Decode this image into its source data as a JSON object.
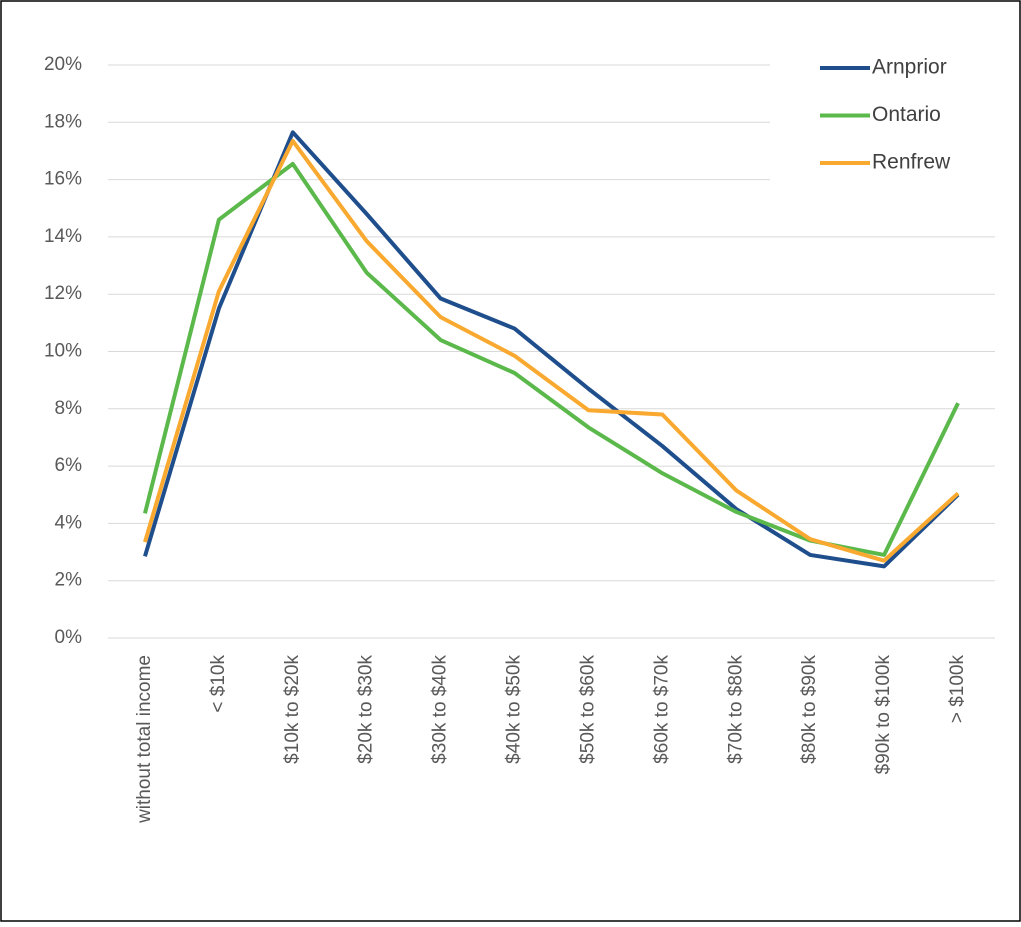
{
  "chart_data": {
    "type": "line",
    "categories": [
      "without total income",
      "< $10k",
      "$10k to $20k",
      "$20k to $30k",
      "$30k to $40k",
      "$40k to $50k",
      "$50k to $60k",
      "$60k to $70k",
      "$70k to $80k",
      "$80k to $90k",
      "$90k to $100k",
      "> $100k"
    ],
    "series": [
      {
        "name": "Arnprior",
        "color": "#1f4e8c",
        "values": [
          2.85,
          11.5,
          17.65,
          14.8,
          11.85,
          10.8,
          8.7,
          6.7,
          4.5,
          2.9,
          2.5,
          5.0
        ]
      },
      {
        "name": "Ontario",
        "color": "#5bb84a",
        "values": [
          4.35,
          14.6,
          16.55,
          12.75,
          10.4,
          9.25,
          7.35,
          5.75,
          4.4,
          3.4,
          2.9,
          8.2
        ]
      },
      {
        "name": "Renfrew",
        "color": "#f9a92f",
        "values": [
          3.35,
          12.1,
          17.35,
          13.85,
          11.2,
          9.85,
          7.95,
          7.8,
          5.15,
          3.45,
          2.7,
          5.05
        ]
      }
    ],
    "ylim": [
      0,
      20
    ],
    "yticks": [
      {
        "value": 0,
        "label": "0%"
      },
      {
        "value": 2,
        "label": "2%"
      },
      {
        "value": 4,
        "label": "4%"
      },
      {
        "value": 6,
        "label": "6%"
      },
      {
        "value": 8,
        "label": "8%"
      },
      {
        "value": 10,
        "label": "10%"
      },
      {
        "value": 12,
        "label": "12%"
      },
      {
        "value": 14,
        "label": "14%"
      },
      {
        "value": 16,
        "label": "16%"
      },
      {
        "value": 18,
        "label": "18%"
      },
      {
        "value": 20,
        "label": "20%"
      }
    ],
    "grid": true,
    "legend": "top-right"
  }
}
